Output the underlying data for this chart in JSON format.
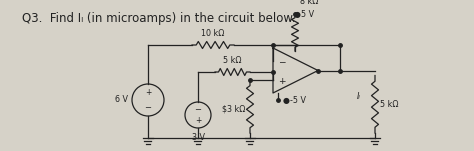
{
  "title": "Q3.  Find Iₗ (in microamps) in the circuit below.",
  "bg_color": "#d6d2c8",
  "text_color": "#222222",
  "title_fontsize": 8.5,
  "fig_width": 4.74,
  "fig_height": 1.51,
  "dpi": 100,
  "labels": {
    "6V": "6 V",
    "3V": "3 V",
    "10k": "10 kΩ",
    "5k": "5 kΩ",
    "3k": "$3 kΩ",
    "8k": "8 kΩ",
    "5k_load": "5 kΩ",
    "plus5V": "●5 V",
    "minus5V": "●-5 V",
    "IL": "Iₗ"
  }
}
